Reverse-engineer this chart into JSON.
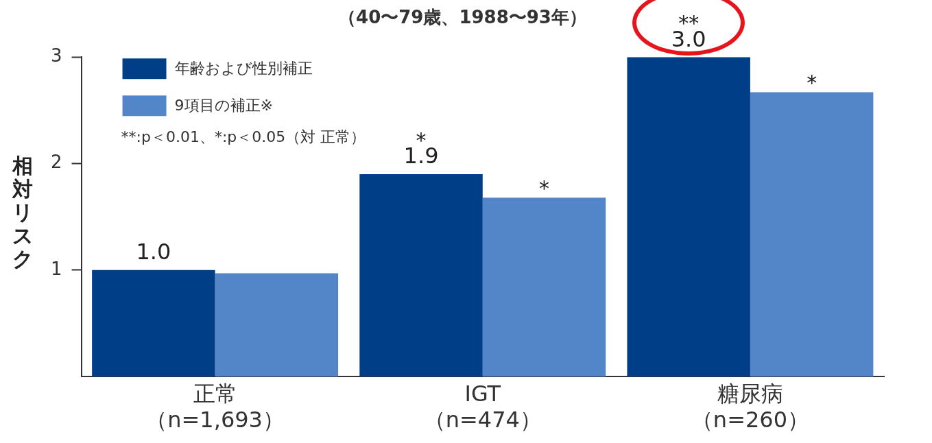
{
  "chart_data": {
    "type": "bar",
    "title": "（40〜79歳、1988〜93年）",
    "ylabel": "相対リスク",
    "categories": [
      "正常（n=1,693）",
      "IGT（n=474）",
      "糖尿病（n=260）"
    ],
    "series": [
      {
        "name": "年齢および性別補正",
        "color": "#003f87",
        "values": [
          1.0,
          1.9,
          3.0
        ],
        "value_labels": [
          "1.0",
          "1.9",
          "3.0"
        ]
      },
      {
        "name": "9項目の補正※",
        "color": "#5386c8",
        "values": [
          0.97,
          1.68,
          2.67
        ],
        "value_labels": [
          null,
          "*",
          "*"
        ]
      }
    ],
    "annotations": [
      "**:p＜0.01、*:p＜0.05（対 正常）",
      {
        "text": "*",
        "x": "IGT（n=474）",
        "y": 1.9
      },
      {
        "text": "**",
        "x": "糖尿病（n=260）",
        "y": 3.0
      }
    ],
    "ylim": [
      0,
      3
    ],
    "yticks": [
      1,
      2,
      3
    ],
    "grid": false,
    "legend": "top left"
  }
}
